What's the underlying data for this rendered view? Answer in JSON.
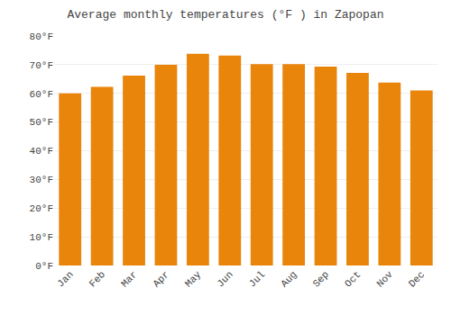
{
  "chart_data": {
    "type": "bar",
    "title": "Average monthly temperatures (°F ) in Zapopan",
    "categories": [
      "Jan",
      "Feb",
      "Mar",
      "Apr",
      "May",
      "Jun",
      "Jul",
      "Aug",
      "Sep",
      "Oct",
      "Nov",
      "Dec"
    ],
    "values": [
      60.0,
      62.3,
      66.2,
      70.0,
      73.8,
      73.2,
      70.2,
      70.2,
      69.3,
      67.1,
      63.8,
      61.0
    ],
    "color": "#E8850A",
    "ylim": [
      0,
      80
    ],
    "yticks": [
      {
        "value": 0,
        "label": "0°F"
      },
      {
        "value": 10,
        "label": "10°F"
      },
      {
        "value": 20,
        "label": "20°F"
      },
      {
        "value": 30,
        "label": "30°F"
      },
      {
        "value": 40,
        "label": "40°F"
      },
      {
        "value": 50,
        "label": "50°F"
      },
      {
        "value": 60,
        "label": "60°F"
      },
      {
        "value": 70,
        "label": "70°F"
      },
      {
        "value": 80,
        "label": "80°F"
      }
    ],
    "grid": true
  }
}
